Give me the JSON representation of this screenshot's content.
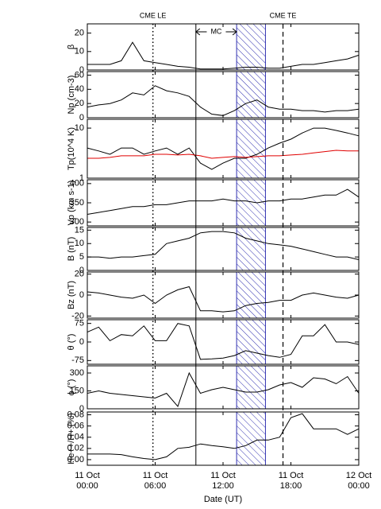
{
  "chart_data": [
    {
      "type": "line",
      "ylabel": "β",
      "xlim": [
        0,
        24
      ],
      "ylim": [
        0,
        25
      ],
      "yticks": [
        0,
        10,
        20
      ],
      "x": [
        0,
        1,
        2,
        3,
        4,
        5,
        6,
        7,
        8,
        9,
        10,
        11,
        12,
        13,
        14,
        15,
        16,
        17,
        18,
        19,
        20,
        21,
        22,
        23,
        24
      ],
      "series": [
        {
          "color": "#000000",
          "values": [
            3,
            3,
            3,
            5,
            15,
            5,
            4,
            3,
            2,
            1.5,
            0.5,
            0.5,
            0.5,
            1,
            1.5,
            1.5,
            1,
            1,
            2,
            3,
            3,
            4,
            5,
            6,
            8
          ]
        }
      ]
    },
    {
      "type": "line",
      "ylabel": "Np (cm-3)",
      "xlim": [
        0,
        24
      ],
      "ylim": [
        0,
        65
      ],
      "yticks": [
        0,
        20,
        40,
        60
      ],
      "x": [
        0,
        1,
        2,
        3,
        4,
        5,
        6,
        7,
        8,
        9,
        10,
        11,
        12,
        13,
        14,
        15,
        16,
        17,
        18,
        19,
        20,
        21,
        22,
        23,
        24
      ],
      "series": [
        {
          "color": "#000000",
          "values": [
            15,
            18,
            20,
            25,
            35,
            32,
            45,
            38,
            35,
            30,
            15,
            5,
            3,
            10,
            20,
            25,
            15,
            12,
            12,
            10,
            10,
            8,
            10,
            10,
            12
          ]
        }
      ]
    },
    {
      "type": "line",
      "ylabel": "Tp(10^4 K)",
      "log": true,
      "xlim": [
        0,
        24
      ],
      "ylim": [
        1,
        15
      ],
      "yticks": [
        1,
        10
      ],
      "x": [
        0,
        1,
        2,
        3,
        4,
        5,
        6,
        7,
        8,
        9,
        10,
        11,
        12,
        13,
        14,
        15,
        16,
        17,
        18,
        19,
        20,
        21,
        22,
        23,
        24
      ],
      "series": [
        {
          "color": "#000000",
          "values": [
            4,
            3.5,
            3,
            4,
            4,
            3,
            3.5,
            4,
            3,
            4,
            2,
            1.5,
            2,
            2.5,
            2.5,
            3,
            4,
            5,
            6,
            8,
            10,
            10,
            9,
            8,
            7
          ]
        },
        {
          "color": "#e00000",
          "values": [
            2.5,
            2.5,
            2.6,
            2.8,
            2.8,
            2.8,
            3,
            3,
            2.9,
            3,
            2.8,
            2.5,
            2.6,
            2.7,
            2.6,
            2.7,
            2.8,
            2.8,
            2.9,
            3,
            3.2,
            3.4,
            3.6,
            3.5,
            3.5
          ]
        }
      ]
    },
    {
      "type": "line",
      "ylabel": "Vp (km s-1)",
      "xlim": [
        0,
        24
      ],
      "ylim": [
        290,
        410
      ],
      "yticks": [
        300,
        350,
        400
      ],
      "x": [
        0,
        1,
        2,
        3,
        4,
        5,
        6,
        7,
        8,
        9,
        10,
        11,
        12,
        13,
        14,
        15,
        16,
        17,
        18,
        19,
        20,
        21,
        22,
        23,
        24
      ],
      "series": [
        {
          "color": "#000000",
          "values": [
            320,
            325,
            330,
            335,
            340,
            340,
            345,
            345,
            350,
            355,
            355,
            355,
            360,
            355,
            355,
            350,
            355,
            355,
            360,
            360,
            365,
            370,
            370,
            385,
            365
          ]
        }
      ]
    },
    {
      "type": "line",
      "ylabel": "B (nT)",
      "xlim": [
        0,
        24
      ],
      "ylim": [
        0,
        16
      ],
      "yticks": [
        0,
        5,
        10,
        15
      ],
      "x": [
        0,
        1,
        2,
        3,
        4,
        5,
        6,
        7,
        8,
        9,
        10,
        11,
        12,
        13,
        14,
        15,
        16,
        17,
        18,
        19,
        20,
        21,
        22,
        23,
        24
      ],
      "series": [
        {
          "color": "#000000",
          "values": [
            5,
            5,
            4.5,
            5,
            5,
            5.5,
            6,
            10,
            11,
            12,
            14,
            14.5,
            14.5,
            14,
            12,
            11,
            10,
            9.5,
            9,
            8,
            7,
            6,
            5,
            5,
            4
          ]
        }
      ]
    },
    {
      "type": "line",
      "ylabel": "Bz (nT)",
      "xlim": [
        0,
        24
      ],
      "ylim": [
        -22,
        22
      ],
      "yticks": [
        -20,
        0,
        20
      ],
      "x": [
        0,
        1,
        2,
        3,
        4,
        5,
        6,
        7,
        8,
        9,
        10,
        11,
        12,
        13,
        14,
        15,
        16,
        17,
        18,
        19,
        20,
        21,
        22,
        23,
        24
      ],
      "series": [
        {
          "color": "#000000",
          "values": [
            3,
            2,
            0,
            -2,
            -3,
            0,
            -8,
            0,
            5,
            8,
            -15,
            -15,
            -16,
            -15,
            -10,
            -8,
            -7,
            -5,
            -5,
            0,
            2,
            0,
            -2,
            -3,
            0
          ]
        }
      ]
    },
    {
      "type": "line",
      "ylabel": "θ (°)",
      "xlim": [
        0,
        24
      ],
      "ylim": [
        -90,
        90
      ],
      "yticks": [
        -75,
        0,
        75
      ],
      "x": [
        0,
        1,
        2,
        3,
        4,
        5,
        6,
        7,
        8,
        9,
        10,
        11,
        12,
        13,
        14,
        15,
        16,
        17,
        18,
        19,
        20,
        21,
        22,
        23,
        24
      ],
      "series": [
        {
          "color": "#000000",
          "values": [
            40,
            60,
            5,
            30,
            25,
            65,
            5,
            5,
            75,
            65,
            -70,
            -68,
            -65,
            -55,
            -35,
            -45,
            -55,
            -62,
            -50,
            25,
            25,
            70,
            0,
            0,
            -10
          ]
        }
      ]
    },
    {
      "type": "line",
      "ylabel": "ϕ (°)",
      "xlim": [
        0,
        24
      ],
      "ylim": [
        0,
        360
      ],
      "yticks": [
        0,
        150,
        300
      ],
      "x": [
        0,
        1,
        2,
        3,
        4,
        5,
        6,
        7,
        8,
        9,
        10,
        11,
        12,
        13,
        14,
        15,
        16,
        17,
        18,
        19,
        20,
        21,
        22,
        23,
        24
      ],
      "series": [
        {
          "color": "#000000",
          "values": [
            130,
            150,
            130,
            120,
            110,
            100,
            90,
            130,
            20,
            300,
            130,
            160,
            180,
            160,
            140,
            140,
            160,
            200,
            220,
            180,
            260,
            250,
            210,
            270,
            130
          ]
        }
      ]
    },
    {
      "type": "line",
      "ylabel": "He++/H+ (%)",
      "xlim": [
        0,
        24
      ],
      "ylim": [
        -0.01,
        0.085
      ],
      "yticks": [
        {
          "value": 0,
          "label": "0.00"
        },
        {
          "value": 0.02,
          "label": "0.02"
        },
        {
          "value": 0.04,
          "label": "0.04"
        },
        {
          "value": 0.06,
          "label": "0.06"
        },
        {
          "value": 0.08,
          "label": "0.08"
        }
      ],
      "x": [
        0,
        1,
        2,
        3,
        4,
        5,
        6,
        7,
        8,
        9,
        10,
        11,
        12,
        13,
        14,
        15,
        16,
        17,
        18,
        19,
        20,
        21,
        22,
        23,
        24
      ],
      "series": [
        {
          "color": "#000000",
          "values": [
            0.01,
            0.01,
            0.01,
            0.009,
            0.005,
            0.002,
            0,
            0.005,
            0.02,
            0.022,
            0.028,
            0.025,
            0.023,
            0.02,
            0.025,
            0.035,
            0.035,
            0.04,
            0.075,
            0.082,
            0.055,
            0.055,
            0.055,
            0.045,
            0.055
          ]
        }
      ],
      "xlabel": "Date (UT)",
      "xticks": [
        {
          "value": 0,
          "label": "11 Oct\n00:00"
        },
        {
          "value": 6,
          "label": "11 Oct\n06:00"
        },
        {
          "value": 12,
          "label": "11 Oct\n12:00"
        },
        {
          "value": 18,
          "label": "11 Oct\n18:00"
        },
        {
          "value": 24,
          "label": "12 Oct\n00:00"
        }
      ]
    }
  ],
  "annotations": {
    "cme_le": {
      "text": "CME LE",
      "x": 5.8
    },
    "mc": {
      "text": "MC",
      "start": 9.6,
      "end": 13.2
    },
    "cme_te": {
      "text": "CME TE",
      "x": 17.3
    },
    "hatch": [
      13.2,
      15.75
    ]
  }
}
